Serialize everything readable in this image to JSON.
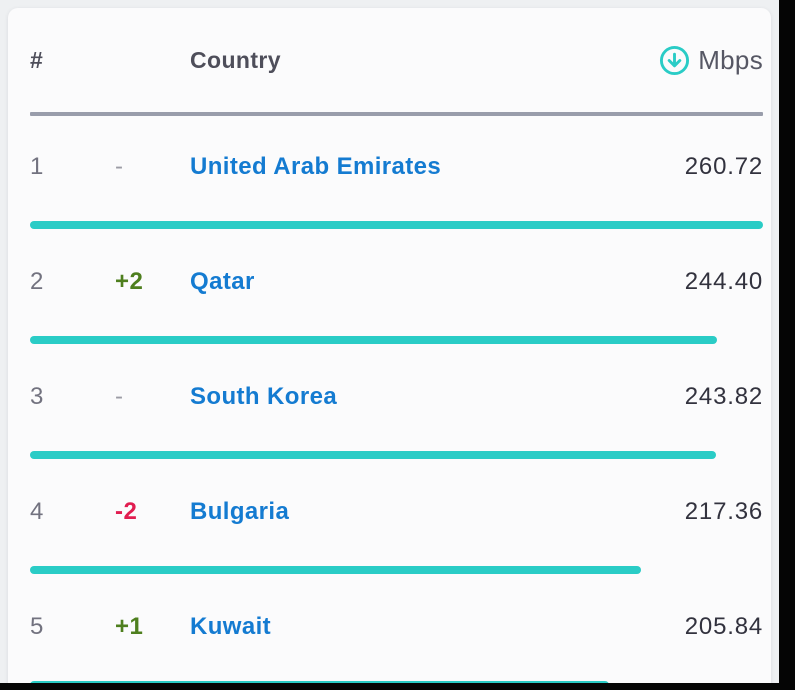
{
  "table": {
    "headers": {
      "rank": "#",
      "country": "Country",
      "speed_unit": "Mbps"
    },
    "sort_icon": "download-circle-arrow-icon",
    "rows": [
      {
        "rank": "1",
        "change": "-",
        "change_type": "same",
        "country": "United Arab Emirates",
        "value": "260.72",
        "bar_pct": 100
      },
      {
        "rank": "2",
        "change": "+2",
        "change_type": "up",
        "country": "Qatar",
        "value": "244.40",
        "bar_pct": 93.74
      },
      {
        "rank": "3",
        "change": "-",
        "change_type": "same",
        "country": "South Korea",
        "value": "243.82",
        "bar_pct": 93.52
      },
      {
        "rank": "4",
        "change": "-2",
        "change_type": "down",
        "country": "Bulgaria",
        "value": "217.36",
        "bar_pct": 83.37
      },
      {
        "rank": "5",
        "change": "+1",
        "change_type": "up",
        "country": "Kuwait",
        "value": "205.84",
        "bar_pct": 78.95
      }
    ]
  },
  "colors": {
    "accent_teal": "#2accc6",
    "link_blue": "#147bd1",
    "change_up_green": "#4e7f1e",
    "change_down_red": "#e11d50",
    "value_dark": "#32323e",
    "header_gray": "#4e4e5a",
    "rule_gray": "#999dab",
    "card_bg": "#fbfbfc",
    "page_bg": "#eef0f2",
    "edge_black": "#050505"
  },
  "chart_data": {
    "type": "table",
    "columns": [
      "#",
      "Country",
      "Mbps"
    ],
    "rows": [
      {
        "rank": 1,
        "change": "0",
        "country": "United Arab Emirates",
        "mbps": 260.72
      },
      {
        "rank": 2,
        "change": "+2",
        "country": "Qatar",
        "mbps": 244.4
      },
      {
        "rank": 3,
        "change": "0",
        "country": "South Korea",
        "mbps": 243.82
      },
      {
        "rank": 4,
        "change": "-2",
        "country": "Bulgaria",
        "mbps": 217.36
      },
      {
        "rank": 5,
        "change": "+1",
        "country": "Kuwait",
        "mbps": 205.84
      }
    ],
    "bar_value_max": 260.72,
    "legend_position": "none",
    "grid": false
  }
}
